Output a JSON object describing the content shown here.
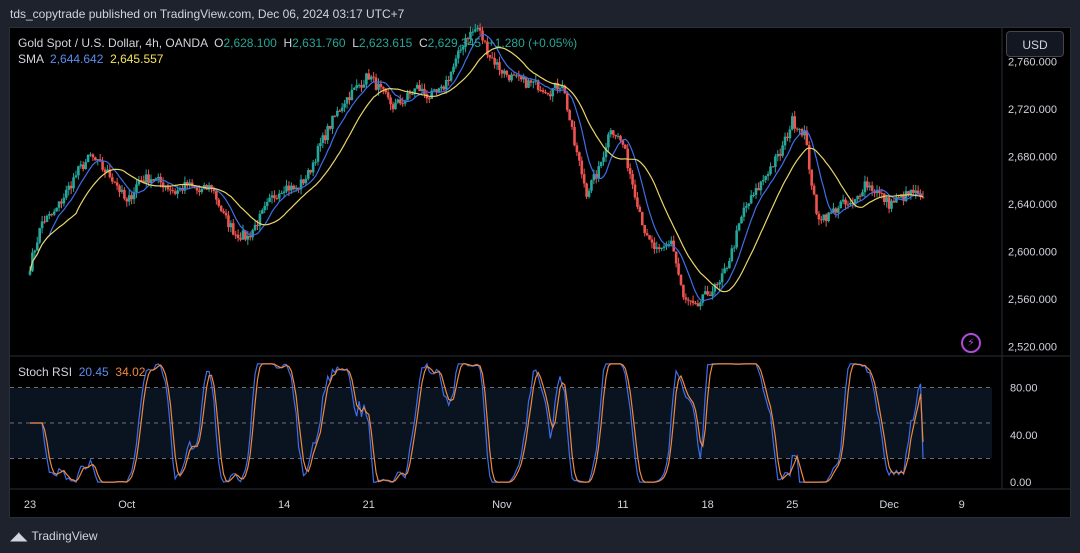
{
  "header": {
    "publisher": "tds_copytrade published on TradingView.com, Dec 06, 2024 03:17 UTC+7"
  },
  "legend": {
    "symbol": "Gold Spot / U.S. Dollar, 4h, OANDA",
    "open_label": "O",
    "open": "2,628.100",
    "high_label": "H",
    "high": "2,631.760",
    "low_label": "L",
    "low": "2,623.615",
    "close_label": "C",
    "close": "2,629.345",
    "change": "+1.280 (+0.05%)",
    "sma_label": "SMA",
    "sma_fast": "2,644.642",
    "sma_slow": "2,645.557"
  },
  "stoch": {
    "label": "Stoch RSI",
    "k": "20.45",
    "d": "34.02"
  },
  "currency_button": "USD",
  "footer": {
    "brand": "TradingView"
  },
  "colors": {
    "up": "#26a69a",
    "down": "#ef5350",
    "sma_fast": "#3e6ee8",
    "sma_slow": "#e9d56a",
    "stoch_k": "#3e6ee8",
    "stoch_d": "#f0883e"
  },
  "chart_data": [
    {
      "type": "candlestick",
      "price_axis": [
        "2,760.000",
        "2,720.000",
        "2,680.000",
        "2,640.000",
        "2,600.000",
        "2,560.000",
        "2,520.000"
      ],
      "price_axis_values": [
        2760,
        2720,
        2680,
        2640,
        2600,
        2560,
        2520
      ],
      "ylim": [
        2513,
        2788
      ],
      "time_axis": [
        "23",
        "Oct",
        "14",
        "21",
        "Nov",
        "11",
        "18",
        "25",
        "Dec",
        "9"
      ],
      "time_axis_day_offsets": [
        0,
        8,
        21,
        28,
        39,
        49,
        56,
        63,
        71,
        77
      ],
      "path_points_day_offset": [
        0,
        1,
        2,
        3,
        4,
        5,
        6,
        7,
        8,
        9,
        10,
        11,
        12,
        13,
        14,
        15,
        16,
        17,
        18,
        19,
        20,
        21,
        22,
        23,
        24,
        25,
        26,
        27,
        28,
        29,
        30,
        31,
        32,
        33,
        34,
        35,
        36,
        37,
        38,
        39,
        40,
        41,
        42,
        43,
        44,
        45,
        46,
        47,
        48,
        49,
        50,
        51,
        52,
        53,
        54,
        55,
        56,
        57,
        58,
        59,
        60,
        61,
        62,
        63,
        64,
        65,
        66,
        67,
        68,
        69,
        70,
        71,
        72,
        73,
        74
      ],
      "path_points_price": [
        2588,
        2625,
        2632,
        2650,
        2668,
        2680,
        2670,
        2660,
        2640,
        2660,
        2662,
        2657,
        2650,
        2656,
        2650,
        2655,
        2630,
        2615,
        2612,
        2628,
        2645,
        2655,
        2652,
        2665,
        2690,
        2710,
        2727,
        2738,
        2748,
        2735,
        2722,
        2728,
        2738,
        2730,
        2735,
        2755,
        2780,
        2788,
        2765,
        2752,
        2745,
        2742,
        2740,
        2735,
        2742,
        2690,
        2650,
        2668,
        2705,
        2690,
        2650,
        2610,
        2598,
        2610,
        2560,
        2552,
        2565,
        2572,
        2600,
        2635,
        2650,
        2668,
        2682,
        2710,
        2700,
        2630,
        2630,
        2640,
        2638,
        2658,
        2650,
        2640,
        2645,
        2650,
        2640
      ],
      "sma_fast_last": 2644.642,
      "sma_slow_last": 2645.557
    },
    {
      "type": "line",
      "title": "Stoch RSI",
      "y_axis": [
        "80.00",
        "40.00",
        "0.00"
      ],
      "y_axis_values": [
        80,
        40,
        0
      ],
      "ylim": [
        -5,
        105
      ],
      "bands": [
        80,
        50,
        20
      ],
      "k_last": 20.45,
      "d_last": 34.02
    }
  ]
}
